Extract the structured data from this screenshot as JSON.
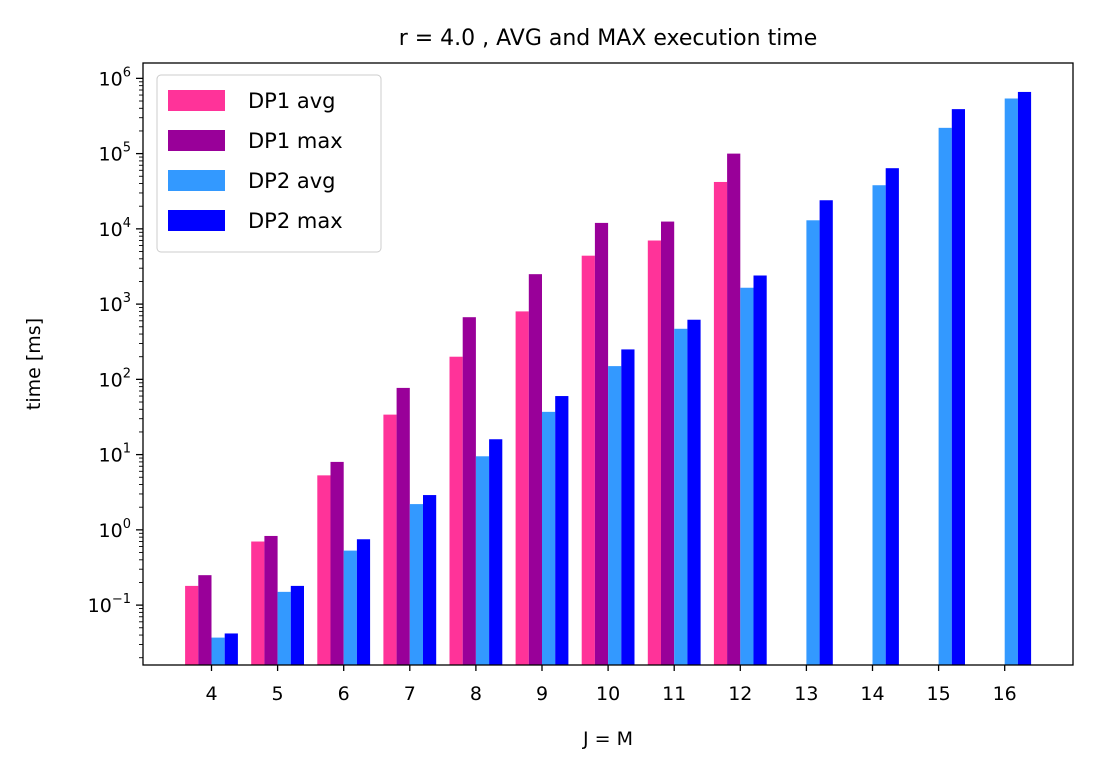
{
  "chart_data": {
    "type": "bar",
    "title": "r = 4.0 , AVG and MAX execution time",
    "xlabel": "J = M",
    "ylabel": "time [ms]",
    "yscale": "log",
    "ylim": [
      0.016,
      1600000
    ],
    "y_ticks": [
      {
        "value": 0.1,
        "mantissa": "10",
        "exponent": "−1"
      },
      {
        "value": 1,
        "mantissa": "10",
        "exponent": "0"
      },
      {
        "value": 10,
        "mantissa": "10",
        "exponent": "1"
      },
      {
        "value": 100,
        "mantissa": "10",
        "exponent": "2"
      },
      {
        "value": 1000,
        "mantissa": "10",
        "exponent": "3"
      },
      {
        "value": 10000,
        "mantissa": "10",
        "exponent": "4"
      },
      {
        "value": 100000,
        "mantissa": "10",
        "exponent": "5"
      },
      {
        "value": 1000000,
        "mantissa": "10",
        "exponent": "6"
      }
    ],
    "categories": [
      "4",
      "5",
      "6",
      "7",
      "8",
      "9",
      "10",
      "11",
      "12",
      "13",
      "14",
      "15",
      "16"
    ],
    "series": [
      {
        "name": "DP1 avg",
        "color": "#ff3399",
        "values": [
          0.18,
          0.7,
          5.3,
          34,
          200,
          800,
          4400,
          7000,
          42000,
          null,
          null,
          null,
          null
        ]
      },
      {
        "name": "DP1 max",
        "color": "#990099",
        "values": [
          0.25,
          0.83,
          8.0,
          77,
          670,
          2500,
          12000,
          12500,
          100000,
          null,
          null,
          null,
          null
        ]
      },
      {
        "name": "DP2 avg",
        "color": "#3399ff",
        "values": [
          0.037,
          0.15,
          0.53,
          2.2,
          9.5,
          37,
          150,
          470,
          1650,
          13000,
          38000,
          220000,
          540000
        ]
      },
      {
        "name": "DP2 max",
        "color": "#0000ff",
        "values": [
          0.042,
          0.18,
          0.75,
          2.9,
          16,
          60,
          250,
          620,
          2400,
          24000,
          64000,
          390000,
          660000
        ]
      }
    ],
    "legend_position": "upper-left",
    "grid": false
  }
}
